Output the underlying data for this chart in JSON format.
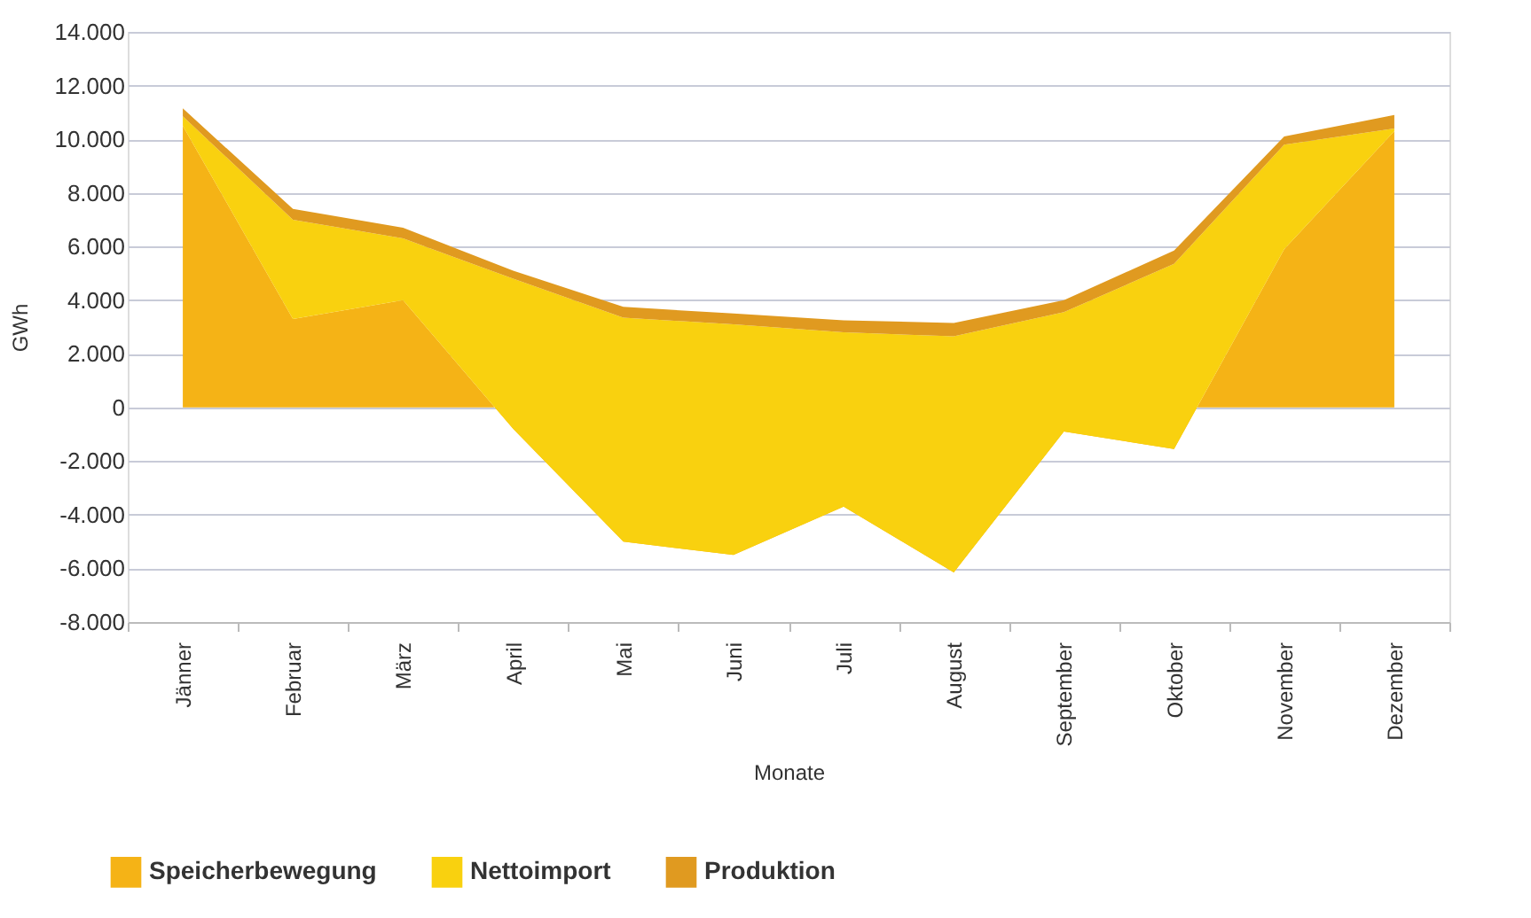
{
  "chart_data": {
    "type": "area",
    "stacked": true,
    "xlabel": "Monate",
    "ylabel": "GWh",
    "categories": [
      "Jänner",
      "Februar",
      "März",
      "April",
      "Mai",
      "Juni",
      "Juli",
      "August",
      "September",
      "Oktober",
      "November",
      "Dezember"
    ],
    "series": [
      {
        "name": "Speicherbewegung",
        "color": "#f5b316",
        "values": [
          10500,
          3300,
          4000,
          -800,
          -5000,
          -5500,
          -3700,
          -6150,
          -900,
          -1550,
          5900,
          10300
        ]
      },
      {
        "name": "Nettoimport",
        "color": "#f9d10f",
        "values": [
          350,
          3700,
          2300,
          5600,
          8350,
          8600,
          6500,
          8800,
          4450,
          6900,
          3900,
          100
        ]
      },
      {
        "name": "Produktion",
        "color": "#e09a20",
        "values": [
          300,
          400,
          400,
          300,
          400,
          400,
          450,
          500,
          450,
          500,
          300,
          500
        ]
      }
    ],
    "ylim": [
      -8000,
      14000
    ],
    "yticks": [
      {
        "value": -8000,
        "label": "-8.000"
      },
      {
        "value": -6000,
        "label": "-6.000"
      },
      {
        "value": -4000,
        "label": "-4.000"
      },
      {
        "value": -2000,
        "label": "-2.000"
      },
      0,
      {
        "value": 2000,
        "label": "2.000"
      },
      {
        "value": 4000,
        "label": "4.000"
      },
      {
        "value": 6000,
        "label": "6.000"
      },
      {
        "value": 8000,
        "label": "8.000"
      },
      {
        "value": 10000,
        "label": "10.000"
      },
      {
        "value": 12000,
        "label": "12.000"
      },
      {
        "value": 14000,
        "label": "14.000"
      }
    ],
    "grid": "y",
    "legend": "bottom left"
  }
}
